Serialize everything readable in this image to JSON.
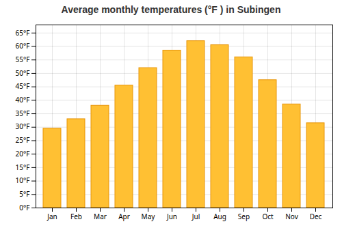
{
  "chart_data": {
    "type": "bar",
    "title": "Average monthly temperatures (°F ) in Subingen",
    "categories": [
      "Jan",
      "Feb",
      "Mar",
      "Apr",
      "May",
      "Jun",
      "Jul",
      "Aug",
      "Sep",
      "Oct",
      "Nov",
      "Dec"
    ],
    "values": [
      29.5,
      33.0,
      38.0,
      45.5,
      52.0,
      58.5,
      62.0,
      60.5,
      56.0,
      47.5,
      38.5,
      31.5
    ],
    "color": "#FFC033",
    "ylim": [
      0,
      68
    ],
    "yticks": [
      {
        "value": 0,
        "label": "0°F"
      },
      {
        "value": 5,
        "label": "5°F"
      },
      {
        "value": 10,
        "label": "10°F"
      },
      {
        "value": 15,
        "label": "15°F"
      },
      {
        "value": 20,
        "label": "20°F"
      },
      {
        "value": 25,
        "label": "25°F"
      },
      {
        "value": 30,
        "label": "30°F"
      },
      {
        "value": 35,
        "label": "35°F"
      },
      {
        "value": 40,
        "label": "40°F"
      },
      {
        "value": 45,
        "label": "45°F"
      },
      {
        "value": 50,
        "label": "50°F"
      },
      {
        "value": 55,
        "label": "55°F"
      },
      {
        "value": 60,
        "label": "60°F"
      },
      {
        "value": 65,
        "label": "65°F"
      }
    ],
    "grid": true
  }
}
